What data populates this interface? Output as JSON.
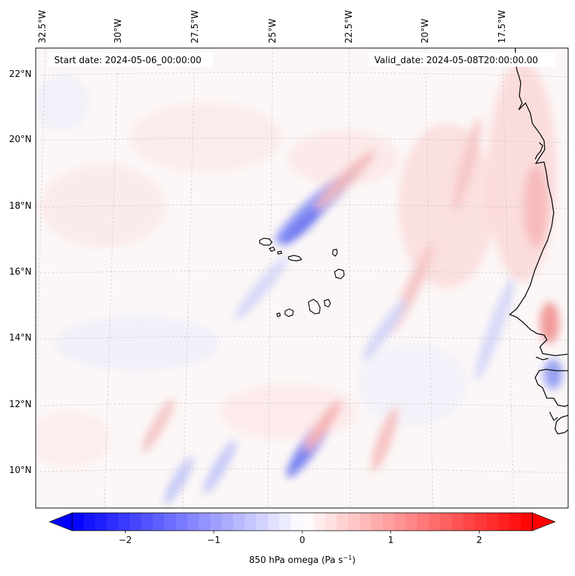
{
  "map": {
    "start_date": "Start date: 2024-05-06_00:00:00",
    "valid_date": "Valid_date: 2024-05-08T20:00:00.00",
    "lon_labels": [
      "32.5°W",
      "30°W",
      "27.5°W",
      "25°W",
      "22.5°W",
      "20°W",
      "17.5°W"
    ],
    "lat_labels": [
      "22°N",
      "20°N",
      "18°N",
      "16°N",
      "14°N",
      "12°N",
      "10°N"
    ],
    "variable": "850 hPa omega",
    "units": "Pa s",
    "units_exponent": "−1"
  },
  "colorbar": {
    "tick_values": [
      -2,
      -1,
      0,
      1,
      2
    ],
    "tick_labels": [
      "−2",
      "−1",
      "0",
      "1",
      "2"
    ],
    "range": [
      -2.6,
      2.6
    ],
    "colormap": "bwr",
    "low_color": "#0000ff",
    "mid_color": "#ffffff",
    "high_color": "#ff0000"
  },
  "colors": {
    "coastline": "#000000",
    "grid": "#c8c8c8"
  }
}
